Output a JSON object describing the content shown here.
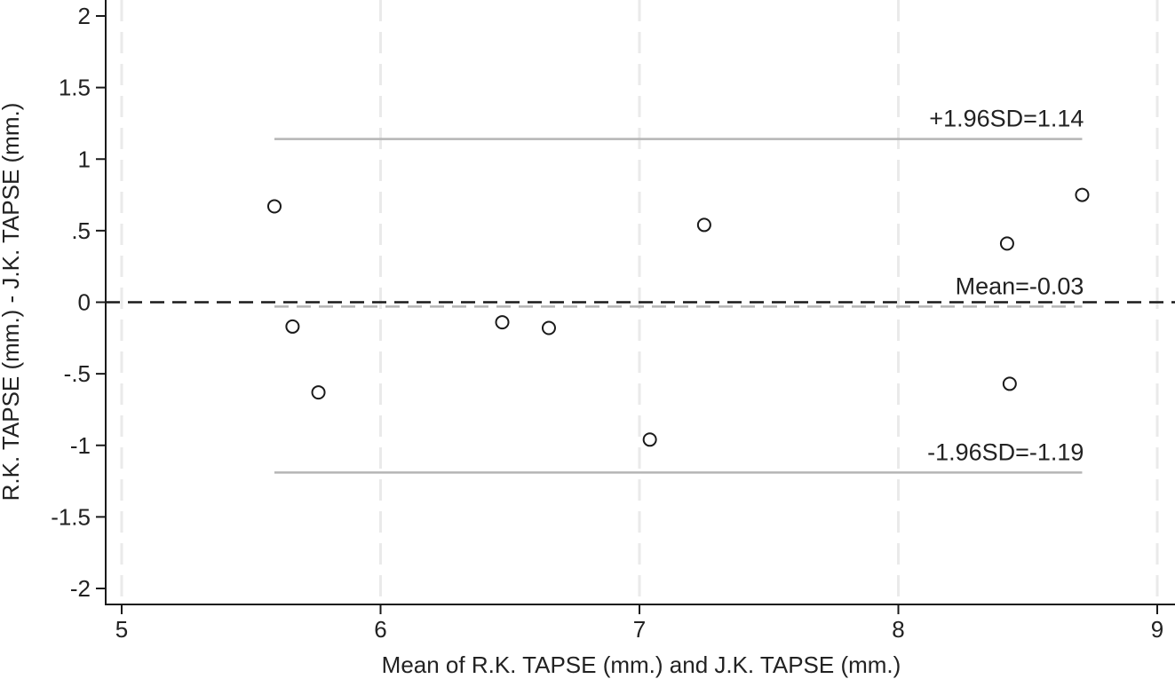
{
  "chart_data": {
    "type": "scatter",
    "title": "",
    "xlabel": "Mean of R.K. TAPSE (mm.) and J.K. TAPSE (mm.)",
    "ylabel": "R.K. TAPSE (mm.) - J.K. TAPSE (mm.)",
    "xlim": [
      4.94,
      9.07
    ],
    "ylim": [
      -2.1,
      2.1
    ],
    "x_ticks": [
      5,
      6,
      7,
      8,
      9
    ],
    "x_tick_labels": [
      "5",
      "6",
      "7",
      "8",
      "9"
    ],
    "y_ticks": [
      2,
      1.5,
      1,
      0.5,
      0,
      -0.5,
      -1,
      -1.5,
      -2
    ],
    "y_tick_labels": [
      "2",
      "1.5",
      "1",
      ".5",
      "0",
      "-.5",
      "-1",
      "-1.5",
      "-2"
    ],
    "grid": {
      "vertical": true,
      "horizontal": false,
      "style": "dashed",
      "color": "#eaeaea"
    },
    "series": [
      {
        "name": "Differences",
        "marker": "hollow-circle",
        "color": "#1a1a1a",
        "points": [
          {
            "x": 5.59,
            "y": 0.67
          },
          {
            "x": 5.66,
            "y": -0.17
          },
          {
            "x": 5.76,
            "y": -0.63
          },
          {
            "x": 6.47,
            "y": -0.14
          },
          {
            "x": 6.65,
            "y": -0.18
          },
          {
            "x": 7.04,
            "y": -0.96
          },
          {
            "x": 7.25,
            "y": 0.54
          },
          {
            "x": 8.42,
            "y": 0.41
          },
          {
            "x": 8.43,
            "y": -0.57
          },
          {
            "x": 8.71,
            "y": 0.75
          }
        ]
      }
    ],
    "reference_lines": [
      {
        "name": "zero-line",
        "y": 0,
        "style": "dashed",
        "color": "#1a1a1a",
        "x_from": 4.94,
        "x_to": 9.07
      },
      {
        "name": "mean-line",
        "y": -0.03,
        "style": "dashed",
        "color": "#b5b5b5",
        "x_from": 5.59,
        "x_to": 8.71,
        "label": "Mean=-0.03"
      },
      {
        "name": "upper-loa-line",
        "y": 1.14,
        "style": "solid",
        "color": "#b5b5b5",
        "x_from": 5.59,
        "x_to": 8.71,
        "label": "+1.96SD=1.14"
      },
      {
        "name": "lower-loa-line",
        "y": -1.19,
        "style": "solid",
        "color": "#b5b5b5",
        "x_from": 5.59,
        "x_to": 8.71,
        "label": "-1.96SD=-1.19"
      }
    ],
    "annotations": [
      "+1.96SD=1.14",
      "Mean=-0.03",
      "-1.96SD=-1.19"
    ],
    "legend": null
  }
}
